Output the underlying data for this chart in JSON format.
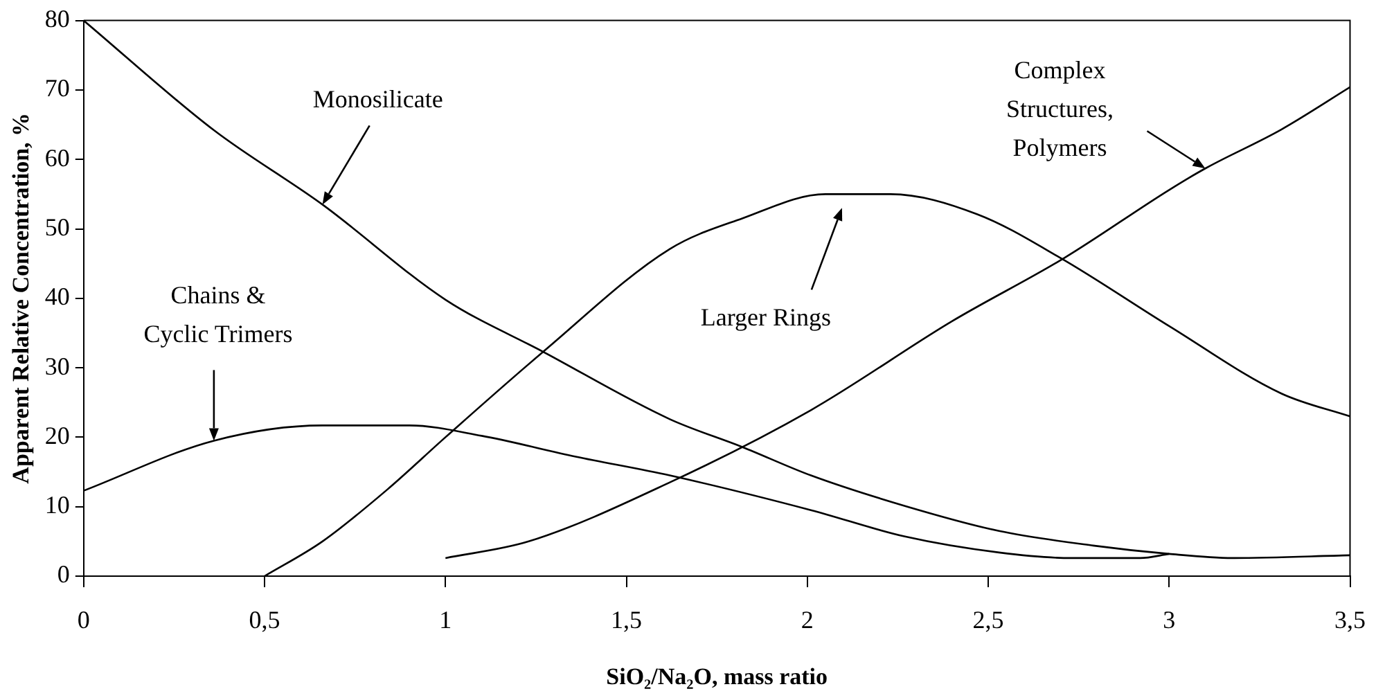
{
  "chart_data": {
    "type": "line",
    "xlabel": "SiO₂/Na₂O, mass ratio",
    "ylabel": "Apparent Relative Concentration, %",
    "xlim": [
      0,
      3.5
    ],
    "xticks": [
      0,
      {
        "value": 0.5,
        "label": "0,5"
      },
      1,
      {
        "value": 1.5,
        "label": "1,5"
      },
      2,
      {
        "value": 2.5,
        "label": "2,5"
      },
      3,
      {
        "value": 3.5,
        "label": "3,5"
      }
    ],
    "ylim": [
      0,
      80
    ],
    "yticks": [
      0,
      10,
      20,
      30,
      40,
      50,
      60,
      70,
      80
    ],
    "grid": false,
    "legend": false,
    "marker": "none",
    "line_style": "solid",
    "series": [
      {
        "name": "Monosilicate",
        "color": "#000000",
        "x": [
          0,
          0.36,
          0.66,
          1.0,
          1.27,
          1.62,
          1.82,
          2.01,
          2.27,
          2.53,
          2.79,
          3.0,
          3.18,
          3.5
        ],
        "values": [
          80,
          64.2,
          53.5,
          39.8,
          32.3,
          22.6,
          18.6,
          14.5,
          10.1,
          6.5,
          4.4,
          3.2,
          2.6,
          3.0
        ]
      },
      {
        "name": "Chains &\nCyclic Trimers",
        "color": "#000000",
        "x": [
          0,
          0.36,
          0.66,
          0.9,
          1.1,
          1.36,
          1.62,
          2.01,
          2.27,
          2.53,
          2.73,
          2.92,
          3.0
        ],
        "values": [
          12.3,
          19.5,
          21.7,
          21.7,
          20.2,
          17.2,
          14.5,
          9.5,
          5.7,
          3.4,
          2.6,
          2.6,
          3.2
        ]
      },
      {
        "name": "Larger Rings",
        "color": "#000000",
        "x": [
          0.5,
          0.66,
          0.84,
          1.0,
          1.27,
          1.62,
          1.82,
          2.05,
          2.23,
          2.47,
          2.7,
          3.0,
          3.31,
          3.5
        ],
        "values": [
          0,
          5.0,
          12.5,
          20,
          32.3,
          47.1,
          51.5,
          55,
          55,
          52.1,
          45.8,
          36,
          26.3,
          23
        ]
      },
      {
        "name": "Complex\nStructures,\nPolymers",
        "color": "#000000",
        "x": [
          1.0,
          1.23,
          1.62,
          2.01,
          2.4,
          2.71,
          3.0,
          3.1,
          3.31,
          3.5
        ],
        "values": [
          2.6,
          5.0,
          13.5,
          23.9,
          36.7,
          45.8,
          55.6,
          58.7,
          64.3,
          70.4
        ]
      }
    ]
  }
}
